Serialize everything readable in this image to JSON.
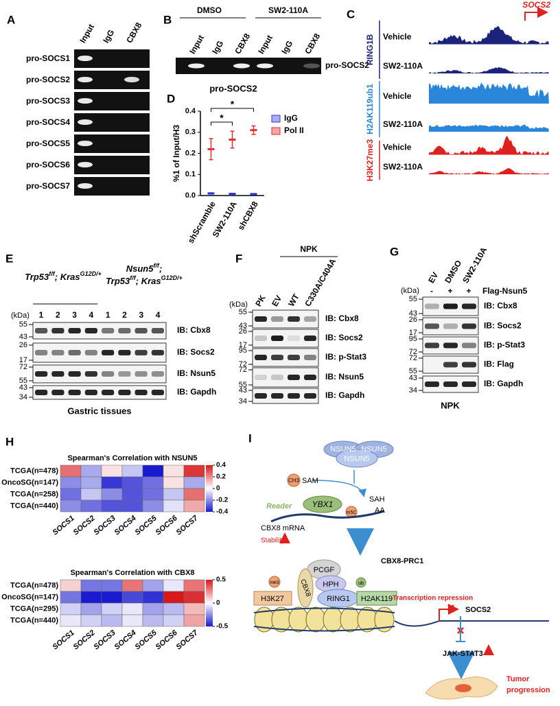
{
  "figure": {
    "A": {
      "label": "A",
      "columns": [
        "Input",
        "IgG",
        "CBX8"
      ],
      "rows": [
        "pro-SOCS1",
        "pro-SOCS2",
        "pro-SOCS3",
        "pro-SOCS4",
        "pro-SOCS5",
        "pro-SOCS6",
        "pro-SOCS7"
      ]
    },
    "B": {
      "label": "B",
      "groups": [
        "DMSO",
        "SW2-110A"
      ],
      "columns": [
        "Input",
        "IgG",
        "CBX8",
        "Input",
        "IgG",
        "CBX8"
      ],
      "target": "pro-SOCS2"
    },
    "C": {
      "label": "C",
      "gene": "SOCS2",
      "tracks": [
        {
          "name": "RING1B",
          "color": "#1b237a",
          "rows": [
            "Vehicle",
            "SW2-110A"
          ]
        },
        {
          "name": "H2AK119ub1",
          "color": "#2a86d8",
          "rows": [
            "Vehicle",
            "SW2-110A"
          ]
        },
        {
          "name": "H3K27me3",
          "color": "#e01f1f",
          "rows": [
            "Vehicle",
            "SW2-110A"
          ]
        }
      ]
    },
    "D": {
      "label": "D"
    },
    "E": {
      "label": "E",
      "genotypes": [
        [
          [
            {
              "t": "Trp53"
            },
            {
              "sup": "f/f"
            },
            {
              "t": "; Kras"
            },
            {
              "sup": "G12D/+"
            }
          ]
        ],
        [
          [
            {
              "t": "Nsun5"
            },
            {
              "sup": "f/f"
            },
            {
              "t": ";"
            }
          ],
          [
            {
              "t": "Trp53"
            },
            {
              "sup": "f/f"
            },
            {
              "t": "; Kras"
            },
            {
              "sup": "G12D/+"
            }
          ]
        ]
      ],
      "kda_header": "(kDa)",
      "lanes": [
        "1",
        "2",
        "3",
        "4",
        "1",
        "2",
        "3",
        "4"
      ],
      "blots": [
        {
          "ib": "IB: Cbx8",
          "kda": [
            55,
            43
          ]
        },
        {
          "ib": "IB: Socs2",
          "kda": [
            26,
            17
          ]
        },
        {
          "ib": "IB: Nsun5",
          "kda": [
            72,
            55
          ]
        },
        {
          "ib": "IB: Gapdh",
          "kda": [
            43,
            34
          ]
        }
      ],
      "footer": "Gastric tissues"
    },
    "F": {
      "label": "F",
      "group": "NPK",
      "kda_header": "(kDa)",
      "lanes": [
        "PK",
        "EV",
        "WT",
        "C330A/C404A"
      ],
      "blots": [
        {
          "ib": "IB: Cbx8",
          "kda": [
            55,
            43
          ]
        },
        {
          "ib": "IB: Socs2",
          "kda": [
            26,
            17
          ]
        },
        {
          "ib": "IB: p-Stat3",
          "kda": [
            95,
            72
          ]
        },
        {
          "ib": "IB: Nsun5",
          "kda": [
            72,
            55
          ]
        },
        {
          "ib": "IB: Gapdh",
          "kda": [
            43,
            34
          ]
        }
      ]
    },
    "G": {
      "label": "G",
      "kda_header": "(kDa)",
      "lanes": [
        "EV",
        "DMSO",
        "SW2-110A"
      ],
      "treatment": "Flag-Nsun5",
      "signs": [
        "-",
        "+",
        "+"
      ],
      "blots": [
        {
          "ib": "IB: Cbx8",
          "kda": [
            55,
            43
          ]
        },
        {
          "ib": "IB: Socs2",
          "kda": [
            26,
            17
          ]
        },
        {
          "ib": "IB: p-Stat3",
          "kda": [
            95,
            72
          ]
        },
        {
          "ib": "IB: Flag",
          "kda": [
            72,
            55
          ]
        },
        {
          "ib": "IB: Gapdh",
          "kda": [
            43,
            34
          ]
        }
      ],
      "footer": "NPK"
    },
    "H": {
      "label": "H"
    },
    "I": {
      "label": "I",
      "enzyme": [
        "NSUN5",
        "NSUN5",
        "NSUN5"
      ],
      "methyl": "CH3",
      "sam": "SAM",
      "sah": "SAH",
      "reader": "Reader",
      "ybx1": "YBX1",
      "m5c": "m5C",
      "aa": "AA",
      "mrna": "CBX8 mRNA",
      "stability": "Stability",
      "complex": "CBX8-PRC1",
      "pcgf": "PCGF",
      "hph": "HPH",
      "cbx8": "CBX8",
      "ring1": "RING1",
      "me3": "me3",
      "h3k27": "H3K27",
      "ub": "ub",
      "h2ak119": "H2AK119",
      "repression": "Transcription repression",
      "socs2": "SOCS2",
      "jak": "JAK-STAT3",
      "outcome": [
        "Tumor",
        "progression"
      ]
    }
  },
  "chart_data": [
    {
      "type": "dot",
      "title": "pro-SOCS2",
      "y_label": "%1 of Input/H3",
      "categories": [
        "shScramble",
        "SW2-110A",
        "shCBX8"
      ],
      "series": [
        {
          "name": "IgG",
          "color": "#2f35d8",
          "fill": "#a9aef0",
          "values": [
            0.01,
            0.008,
            0.007
          ],
          "errors": [
            0.003,
            0.002,
            0.002
          ]
        },
        {
          "name": "Pol II",
          "color": "#e03030",
          "fill": "#f5a5a5",
          "values": [
            0.22,
            0.265,
            0.31
          ],
          "errors": [
            0.05,
            0.04,
            0.02
          ]
        }
      ],
      "ylim": [
        0,
        0.4
      ],
      "yticks": [
        {
          "value": 0,
          "label": "0.0"
        },
        0.1,
        0.2,
        0.3,
        0.4
      ],
      "annotations": [
        "*",
        "*"
      ]
    },
    {
      "type": "heatmap",
      "title": "Spearman's Correlation with NSUN5",
      "rows": [
        "TCGA(n=478)",
        "OncoSG(n=147)",
        "TCGA(n=258)",
        "TCGA(n=440)"
      ],
      "columns": [
        "SOCS1",
        "SOCS2",
        "SOCS3",
        "SOCS4",
        "SOCS5",
        "SOCS6",
        "SOCS7"
      ],
      "values": [
        [
          0.25,
          -0.15,
          0.05,
          -0.1,
          -0.4,
          0.05,
          0.35
        ],
        [
          -0.2,
          -0.15,
          -0.35,
          -0.3,
          -0.25,
          0.05,
          -0.15
        ],
        [
          -0.25,
          -0.1,
          -0.2,
          -0.3,
          -0.25,
          -0.1,
          0.25
        ],
        [
          -0.2,
          -0.25,
          -0.3,
          -0.3,
          -0.2,
          -0.05,
          0.15
        ]
      ],
      "clim": [
        -0.4,
        0.4
      ],
      "cticks": [
        0.4,
        0.2,
        0,
        -0.2,
        -0.4
      ]
    },
    {
      "type": "heatmap",
      "title": "Spearman's Correlation with CBX8",
      "rows": [
        "TCGA(n=478)",
        "OncoSG(n=147)",
        "TCGA(n=295)",
        "TCGA(n=440)"
      ],
      "columns": [
        "SOCS1",
        "SOCS2",
        "SOCS3",
        "SOCS4",
        "SOCS5",
        "SOCS6",
        "SOCS7"
      ],
      "values": [
        [
          0.1,
          -0.3,
          -0.3,
          0.3,
          -0.2,
          -0.05,
          0.3
        ],
        [
          -0.3,
          -0.5,
          -0.5,
          -0.4,
          -0.45,
          0.5,
          0.45
        ],
        [
          -0.1,
          -0.2,
          -0.1,
          -0.05,
          -0.2,
          -0.15,
          0.15
        ],
        [
          -0.05,
          -0.1,
          -0.15,
          -0.05,
          -0.15,
          -0.1,
          0.2
        ]
      ],
      "clim": [
        -0.5,
        0.5
      ],
      "cticks": [
        0.5,
        0,
        -0.5
      ]
    }
  ]
}
